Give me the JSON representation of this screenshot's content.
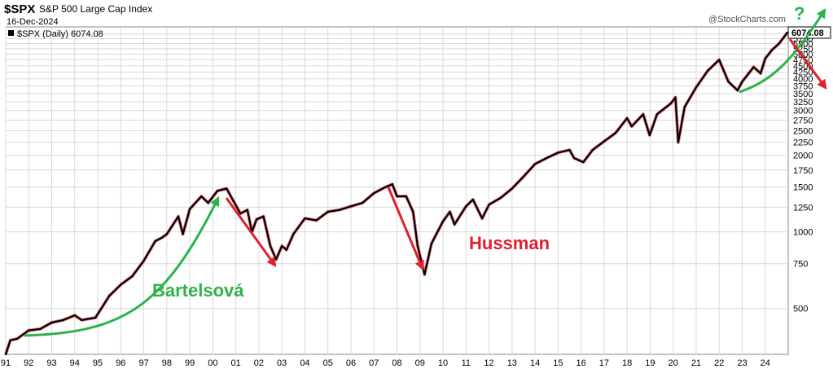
{
  "header": {
    "symbol": "$SPX",
    "name": "S&P 500 Large Cap Index",
    "date": "16-Dec-2024",
    "series_label": "$SPX (Daily) 6074.08",
    "brand": "@StockCharts.com"
  },
  "colors": {
    "price": "#000000",
    "price_down": "#d01c2a",
    "green_arrow": "#2db34a",
    "red_arrow": "#e0202a",
    "grid": "#d9d9d9",
    "frame": "#888888"
  },
  "chart_data": {
    "type": "line",
    "title": "$SPX S&P 500 Large Cap Index",
    "scale": "log",
    "ylim": [
      330,
      6400
    ],
    "xlim": [
      1991.0,
      2025.0
    ],
    "grid": true,
    "y_ticks": [
      "500",
      "750",
      "1000",
      "1250",
      "1500",
      "1750",
      "2000",
      "2250",
      "2500",
      "2750",
      "3000",
      "3250",
      "3500",
      "3750",
      "4000",
      "4250",
      "4500",
      "4750",
      "5000",
      "5250",
      "5500",
      "5750",
      "6000"
    ],
    "x_ticks": [
      "91",
      "92",
      "93",
      "94",
      "95",
      "96",
      "97",
      "98",
      "99",
      "00",
      "01",
      "02",
      "03",
      "04",
      "05",
      "06",
      "07",
      "08",
      "09",
      "10",
      "11",
      "12",
      "13",
      "14",
      "15",
      "16",
      "17",
      "18",
      "19",
      "20",
      "21",
      "22",
      "23",
      "24"
    ],
    "last_value": "6074.08",
    "series": [
      {
        "x": [
          1991.0,
          1991.2,
          1991.5,
          1992.0,
          1992.5,
          1993.0,
          1993.5,
          1994.0,
          1994.3,
          1994.9,
          1995.5,
          1996.0,
          1996.5,
          1997.0,
          1997.5,
          1997.8,
          1998.0,
          1998.5,
          1998.7,
          1999.0,
          1999.5,
          1999.8,
          2000.2,
          2000.6,
          2000.9,
          2001.2,
          2001.5,
          2001.7,
          2001.9,
          2002.2,
          2002.5,
          2002.75,
          2003.0,
          2003.2,
          2003.5,
          2004.0,
          2004.5,
          2005.0,
          2005.5,
          2006.0,
          2006.5,
          2007.0,
          2007.5,
          2007.8,
          2008.0,
          2008.4,
          2008.7,
          2008.9,
          2009.2,
          2009.5,
          2010.0,
          2010.3,
          2010.5,
          2011.0,
          2011.3,
          2011.7,
          2012.0,
          2012.5,
          2013.0,
          2013.5,
          2014.0,
          2014.5,
          2015.0,
          2015.5,
          2015.7,
          2016.1,
          2016.5,
          2017.0,
          2017.5,
          2018.0,
          2018.2,
          2018.7,
          2018.98,
          2019.3,
          2019.9,
          2020.1,
          2020.22,
          2020.5,
          2021.0,
          2021.5,
          2022.0,
          2022.4,
          2022.8,
          2023.0,
          2023.5,
          2023.8,
          2024.0,
          2024.3,
          2024.6,
          2024.96
        ],
        "values": [
          330,
          375,
          380,
          410,
          415,
          440,
          450,
          470,
          450,
          460,
          560,
          620,
          670,
          770,
          920,
          950,
          980,
          1150,
          980,
          1230,
          1380,
          1300,
          1450,
          1480,
          1320,
          1180,
          1220,
          1000,
          1120,
          1150,
          880,
          780,
          880,
          850,
          980,
          1130,
          1110,
          1200,
          1220,
          1260,
          1300,
          1420,
          1500,
          1540,
          1380,
          1380,
          1200,
          880,
          680,
          900,
          1100,
          1200,
          1070,
          1260,
          1340,
          1130,
          1280,
          1360,
          1480,
          1650,
          1850,
          1950,
          2050,
          2100,
          1950,
          1880,
          2100,
          2270,
          2450,
          2800,
          2600,
          2900,
          2400,
          2900,
          3200,
          3380,
          2250,
          3100,
          3700,
          4300,
          4750,
          3900,
          3600,
          3900,
          4450,
          4200,
          4800,
          5200,
          5500,
          6074
        ]
      }
    ]
  },
  "annotations": {
    "label_bull": "Bartelsová",
    "label_bear": "Hussman",
    "question": "?"
  }
}
